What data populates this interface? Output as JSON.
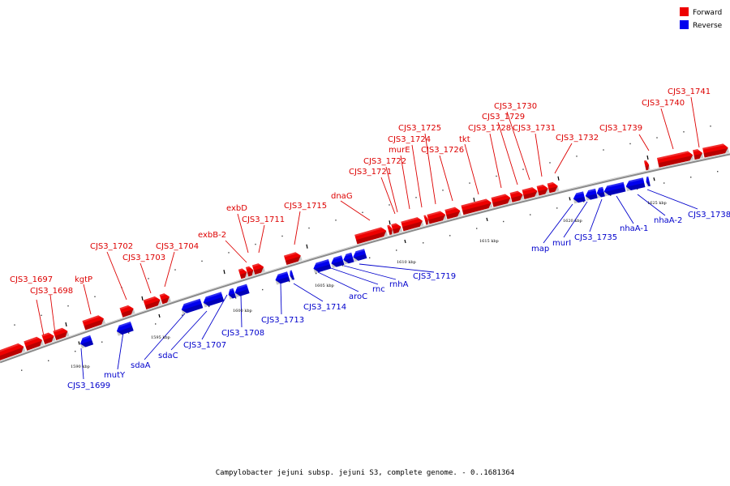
{
  "legend": {
    "forward": {
      "label": "Forward",
      "color": "#ee0000"
    },
    "reverse": {
      "label": "Reverse",
      "color": "#0000ee"
    }
  },
  "caption": "Campylobacter jejuni subsp. jejuni S3, complete genome. - 0..1681364",
  "colors": {
    "forward_label": "#dd0000",
    "reverse_label": "#0000cc",
    "backbone": "#888888"
  },
  "ticks": [
    "1590 kbp",
    "1595 kbp",
    "1600 kbp",
    "1605 kbp",
    "1610 kbp",
    "1615 kbp",
    "1620 kbp",
    "1625 kbp"
  ],
  "forward_labels": [
    "CJS3_1697",
    "CJS3_1698",
    "kgtP",
    "CJS3_1702",
    "CJS3_1703",
    "CJS3_1704",
    "exbB-2",
    "exbD",
    "CJS3_1711",
    "CJS3_1715",
    "dnaG",
    "CJS3_1721",
    "CJS3_1722",
    "murE",
    "CJS3_1724",
    "CJS3_1725",
    "CJS3_1726",
    "tkt",
    "CJS3_1728",
    "CJS3_1729",
    "CJS3_1730",
    "CJS3_1731",
    "CJS3_1732",
    "CJS3_1739",
    "CJS3_1740",
    "CJS3_1741"
  ],
  "reverse_labels": [
    "CJS3_1699",
    "mutY",
    "sdaA",
    "sdaC",
    "CJS3_1707",
    "CJS3_1708",
    "CJS3_1713",
    "CJS3_1714",
    "aroC",
    "rnc",
    "rnhA",
    "CJS3_1719",
    "map",
    "murI",
    "CJS3_1735",
    "nhaA-1",
    "nhaA-2",
    "CJS3_1738"
  ]
}
